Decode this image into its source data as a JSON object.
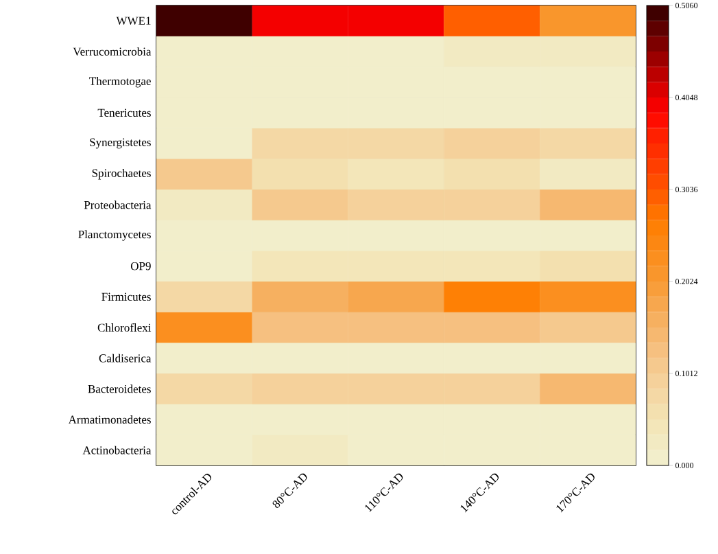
{
  "chart_data": {
    "type": "heatmap",
    "categories": [
      "control-AD",
      "80°C-AD",
      "110°C-AD",
      "140°C-AD",
      "170°C-AD"
    ],
    "y_categories": [
      "WWE1",
      "Verrucomicrobia",
      "Thermotogae",
      "Tenericutes",
      "Synergistetes",
      "Spirochaetes",
      "Proteobacteria",
      "Planctomycetes",
      "OP9",
      "Firmicutes",
      "Chloroflexi",
      "Caldiserica",
      "Bacteroidetes",
      "Armatimonadetes",
      "Actinobacteria"
    ],
    "cells": [
      [
        0.506,
        0.4,
        0.4,
        0.29,
        0.21
      ],
      [
        0.005,
        0.005,
        0.005,
        0.03,
        0.03
      ],
      [
        0.003,
        0.003,
        0.003,
        0.003,
        0.003
      ],
      [
        0.003,
        0.003,
        0.003,
        0.003,
        0.003
      ],
      [
        0.005,
        0.07,
        0.07,
        0.09,
        0.07
      ],
      [
        0.11,
        0.06,
        0.04,
        0.06,
        0.03
      ],
      [
        0.03,
        0.11,
        0.09,
        0.09,
        0.14
      ],
      [
        0.005,
        0.005,
        0.005,
        0.005,
        0.005
      ],
      [
        0.005,
        0.05,
        0.05,
        0.05,
        0.06
      ],
      [
        0.08,
        0.16,
        0.17,
        0.26,
        0.23
      ],
      [
        0.22,
        0.13,
        0.13,
        0.13,
        0.11
      ],
      [
        0.005,
        0.005,
        0.005,
        0.005,
        0.005
      ],
      [
        0.07,
        0.1,
        0.1,
        0.1,
        0.15
      ],
      [
        0.005,
        0.005,
        0.005,
        0.005,
        0.005
      ],
      [
        0.005,
        0.025,
        0.005,
        0.005,
        0.005
      ]
    ],
    "clim": [
      0,
      0.506
    ],
    "cticks": [
      {
        "value": 0,
        "label": "0.000"
      },
      0.1012,
      0.2024,
      0.3036,
      0.4048,
      {
        "value": 0.506,
        "label": "0.5060"
      }
    ]
  }
}
